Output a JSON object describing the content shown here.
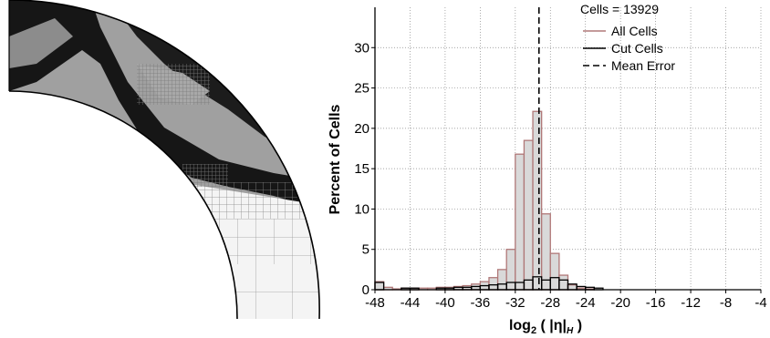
{
  "chart_data": [
    {
      "type": "image",
      "description_name": "adaptive-cut-cell-mesh"
    },
    {
      "type": "bar",
      "title": "",
      "annotation": "Cells = 13929",
      "xlabel_base": "log",
      "xlabel_sub": "2",
      "xlabel_rest": " ( |η|",
      "xlabel_sub2": "H",
      "xlabel_end": " )",
      "ylabel": "Percent of Cells",
      "xlim": [
        -48,
        -4
      ],
      "ylim": [
        0,
        35
      ],
      "xticks": [
        -48,
        -44,
        -40,
        -36,
        -32,
        -28,
        -24,
        -20,
        -16,
        -12,
        -8,
        -4
      ],
      "yticks": [
        0,
        5,
        10,
        15,
        20,
        25,
        30
      ],
      "grid": true,
      "legend_position": "top-right",
      "bin_width": 1,
      "series": [
        {
          "name": "All Cells",
          "color": "#b07878",
          "fill": "#d9d9d9",
          "bins": [
            [
              -48,
              1.0
            ],
            [
              -47,
              0.3
            ],
            [
              -46,
              0.1
            ],
            [
              -45,
              0.2
            ],
            [
              -44,
              0.2
            ],
            [
              -43,
              0.2
            ],
            [
              -42,
              0.2
            ],
            [
              -41,
              0.3
            ],
            [
              -40,
              0.3
            ],
            [
              -39,
              0.4
            ],
            [
              -38,
              0.5
            ],
            [
              -37,
              0.7
            ],
            [
              -36,
              1.0
            ],
            [
              -35,
              1.5
            ],
            [
              -34,
              2.5
            ],
            [
              -33,
              5.0
            ],
            [
              -32,
              16.8
            ],
            [
              -31,
              18.5
            ],
            [
              -30,
              22.1
            ],
            [
              -29,
              9.4
            ],
            [
              -28,
              4.5
            ],
            [
              -27,
              1.8
            ],
            [
              -26,
              0.6
            ],
            [
              -25,
              0.2
            ],
            [
              -24,
              0.1
            ]
          ]
        },
        {
          "name": "Cut Cells",
          "color": "#000000",
          "bins": [
            [
              -48,
              0.9
            ],
            [
              -45,
              0.2
            ],
            [
              -44,
              0.2
            ],
            [
              -41,
              0.2
            ],
            [
              -40,
              0.2
            ],
            [
              -39,
              0.3
            ],
            [
              -38,
              0.3
            ],
            [
              -37,
              0.4
            ],
            [
              -36,
              0.5
            ],
            [
              -35,
              0.6
            ],
            [
              -34,
              0.7
            ],
            [
              -33,
              0.9
            ],
            [
              -32,
              0.9
            ],
            [
              -31,
              1.2
            ],
            [
              -30,
              1.6
            ],
            [
              -29,
              1.2
            ],
            [
              -28,
              1.5
            ],
            [
              -27,
              1.2
            ],
            [
              -26,
              0.7
            ],
            [
              -25,
              0.4
            ],
            [
              -24,
              0.3
            ],
            [
              -23,
              0.2
            ]
          ]
        },
        {
          "name": "Mean Error",
          "color": "#000000",
          "line_style": "dashed",
          "x": -29.3
        }
      ]
    }
  ]
}
